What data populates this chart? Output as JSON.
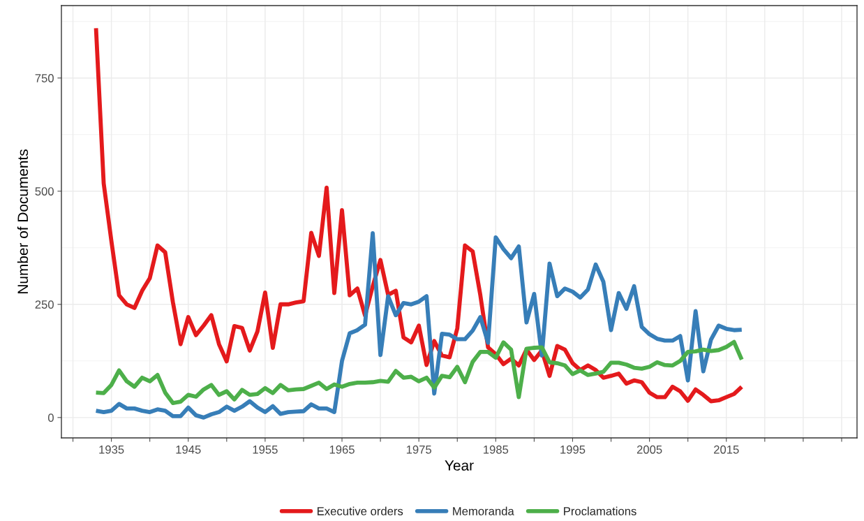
{
  "chart_data": {
    "type": "line",
    "xlabel": "Year",
    "ylabel": "Number of Documents",
    "x": [
      1933,
      1934,
      1935,
      1936,
      1937,
      1938,
      1939,
      1940,
      1941,
      1942,
      1943,
      1944,
      1945,
      1946,
      1947,
      1948,
      1949,
      1950,
      1951,
      1952,
      1953,
      1954,
      1955,
      1956,
      1957,
      1958,
      1959,
      1960,
      1961,
      1962,
      1963,
      1964,
      1965,
      1966,
      1967,
      1968,
      1969,
      1970,
      1971,
      1972,
      1973,
      1974,
      1975,
      1976,
      1977,
      1978,
      1979,
      1980,
      1981,
      1982,
      1983,
      1984,
      1985,
      1986,
      1987,
      1988,
      1989,
      1990,
      1991,
      1992,
      1993,
      1994,
      1995,
      1996,
      1997,
      1998,
      1999,
      2000,
      2001,
      2002,
      2003,
      2004,
      2005,
      2006,
      2007,
      2008,
      2009,
      2010,
      2011,
      2012,
      2013,
      2014,
      2015,
      2016,
      2017
    ],
    "series": [
      {
        "name": "Executive orders",
        "color": "#e41a1c",
        "values": [
          860,
          517,
          390,
          270,
          250,
          242,
          280,
          308,
          380,
          365,
          255,
          162,
          222,
          182,
          203,
          226,
          162,
          124,
          202,
          198,
          148,
          190,
          276,
          154,
          250,
          250,
          254,
          257,
          408,
          357,
          508,
          275,
          458,
          270,
          285,
          225,
          290,
          348,
          271,
          280,
          177,
          166,
          203,
          116,
          169,
          137,
          133,
          197,
          380,
          367,
          270,
          155,
          140,
          118,
          130,
          115,
          150,
          127,
          148,
          92,
          158,
          150,
          120,
          105,
          115,
          105,
          88,
          92,
          97,
          75,
          82,
          78,
          55,
          45,
          45,
          68,
          58,
          37,
          62,
          50,
          36,
          38,
          45,
          52,
          68
        ]
      },
      {
        "name": "Memoranda",
        "color": "#377eb8",
        "values": [
          15,
          12,
          15,
          30,
          20,
          20,
          15,
          12,
          18,
          15,
          3,
          3,
          22,
          5,
          0,
          7,
          12,
          24,
          15,
          24,
          36,
          22,
          12,
          25,
          8,
          12,
          13,
          14,
          29,
          20,
          20,
          12,
          125,
          186,
          193,
          205,
          407,
          138,
          268,
          226,
          253,
          250,
          256,
          268,
          53,
          185,
          183,
          173,
          173,
          192,
          222,
          165,
          398,
          372,
          352,
          378,
          210,
          273,
          137,
          340,
          268,
          285,
          278,
          265,
          283,
          338,
          300,
          193,
          275,
          240,
          290,
          200,
          184,
          174,
          170,
          170,
          180,
          82,
          235,
          102,
          172,
          203,
          196,
          193,
          194
        ]
      },
      {
        "name": "Proclamations",
        "color": "#4daf4a",
        "values": [
          55,
          54,
          72,
          104,
          80,
          68,
          88,
          80,
          94,
          55,
          32,
          35,
          50,
          46,
          62,
          72,
          50,
          58,
          40,
          61,
          50,
          52,
          65,
          54,
          72,
          60,
          62,
          63,
          70,
          77,
          63,
          73,
          68,
          74,
          77,
          77,
          78,
          81,
          79,
          103,
          88,
          90,
          80,
          88,
          66,
          92,
          89,
          112,
          78,
          123,
          145,
          145,
          132,
          166,
          150,
          45,
          152,
          154,
          155,
          122,
          120,
          115,
          96,
          104,
          94,
          97,
          101,
          121,
          121,
          117,
          110,
          108,
          112,
          122,
          116,
          115,
          125,
          145,
          146,
          150,
          147,
          149,
          156,
          167,
          128
        ]
      }
    ],
    "xlim": [
      1928.5,
      2032
    ],
    "xticks": [
      {
        "value": 1930,
        "label": null
      },
      1935,
      {
        "value": 1940,
        "label": null
      },
      1945,
      {
        "value": 1950,
        "label": null
      },
      1955,
      {
        "value": 1960,
        "label": null
      },
      1965,
      {
        "value": 1970,
        "label": null
      },
      1975,
      {
        "value": 1980,
        "label": null
      },
      1985,
      {
        "value": 1990,
        "label": null
      },
      1995,
      {
        "value": 2000,
        "label": null
      },
      2005,
      {
        "value": 2010,
        "label": null
      },
      2015,
      {
        "value": 2020,
        "label": null
      },
      {
        "value": 2025,
        "label": null
      },
      {
        "value": 2030,
        "label": null
      }
    ],
    "ylim": [
      -45,
      910
    ],
    "yticks": [
      0,
      250,
      500,
      750
    ],
    "grid": true,
    "legend": "bottom",
    "line_style": "solid"
  }
}
